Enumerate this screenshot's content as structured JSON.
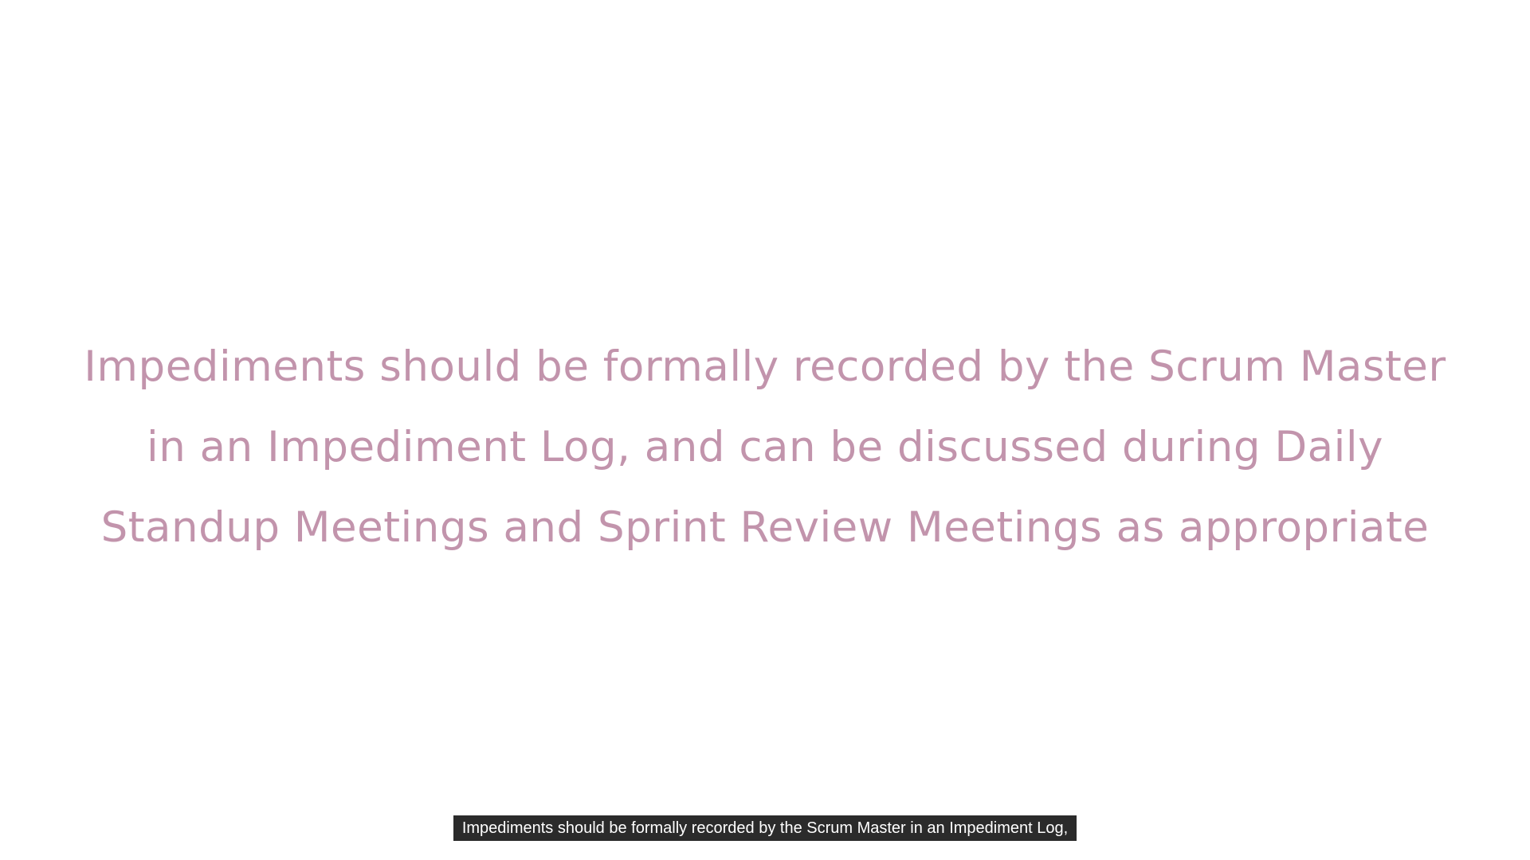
{
  "slide": {
    "lines": [
      "Impediments should be formally recorded by the Scrum Master",
      "in an Impediment Log, and can be discussed during Daily",
      "Standup Meetings and Sprint Review Meetings as appropriate"
    ],
    "text_color": "#c294ac",
    "background_color": "#ffffff"
  },
  "subtitle": {
    "text": "Impediments should be formally recorded by the Scrum Master in an Impediment Log,",
    "background_color": "#2b2b2b",
    "text_color": "#ffffff"
  }
}
